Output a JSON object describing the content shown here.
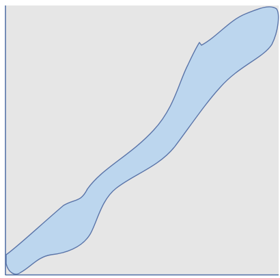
{
  "figure": {
    "background_color": "#e6e6e6",
    "frame_color": "#4f6fa6",
    "band_fill": "#bcd6ee",
    "band_stroke": "#5a74a8"
  }
}
